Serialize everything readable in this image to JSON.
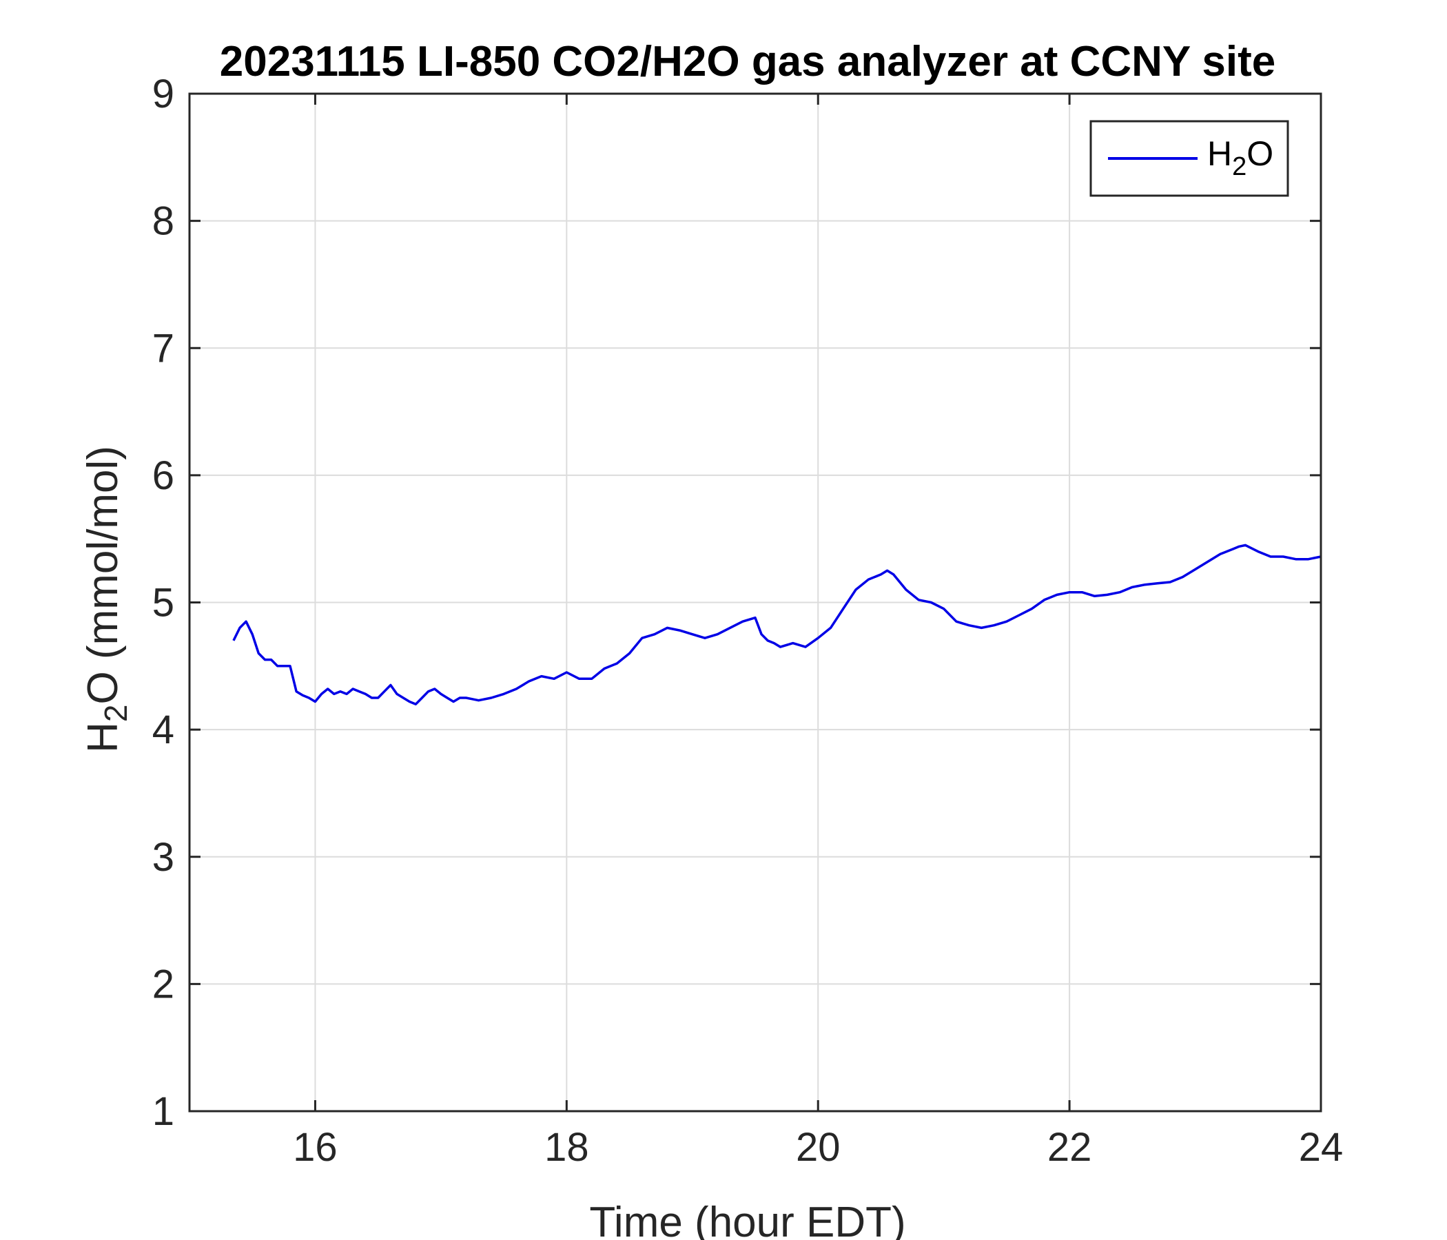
{
  "chart_data": {
    "type": "line",
    "title": "20231115 LI-850 CO2/H2O gas analyzer at CCNY site",
    "xlabel": "Time (hour EDT)",
    "ylabel": {
      "main": "H",
      "sub": "2",
      "rest": "O (mmol/mol)"
    },
    "xlim": [
      15,
      24
    ],
    "ylim": [
      1,
      9
    ],
    "xticks": [
      16,
      18,
      20,
      22,
      24
    ],
    "yticks": [
      1,
      2,
      3,
      4,
      5,
      6,
      7,
      8,
      9
    ],
    "grid": true,
    "legend_position": "top-right",
    "series": [
      {
        "name": {
          "main": "H",
          "sub": "2",
          "rest": "O"
        },
        "color": "#0000e6",
        "x": [
          15.35,
          15.4,
          15.45,
          15.5,
          15.55,
          15.6,
          15.65,
          15.7,
          15.75,
          15.8,
          15.85,
          15.9,
          15.95,
          16.0,
          16.05,
          16.1,
          16.15,
          16.2,
          16.25,
          16.3,
          16.35,
          16.4,
          16.45,
          16.5,
          16.55,
          16.6,
          16.65,
          16.7,
          16.75,
          16.8,
          16.85,
          16.9,
          16.95,
          17.0,
          17.05,
          17.1,
          17.15,
          17.2,
          17.25,
          17.3,
          17.4,
          17.5,
          17.6,
          17.7,
          17.8,
          17.9,
          18.0,
          18.1,
          18.2,
          18.3,
          18.4,
          18.5,
          18.6,
          18.7,
          18.8,
          18.9,
          19.0,
          19.1,
          19.2,
          19.3,
          19.4,
          19.5,
          19.55,
          19.6,
          19.65,
          19.7,
          19.8,
          19.9,
          20.0,
          20.1,
          20.2,
          20.3,
          20.4,
          20.5,
          20.55,
          20.6,
          20.7,
          20.8,
          20.9,
          21.0,
          21.1,
          21.2,
          21.3,
          21.4,
          21.5,
          21.6,
          21.7,
          21.8,
          21.9,
          22.0,
          22.1,
          22.2,
          22.3,
          22.4,
          22.5,
          22.6,
          22.7,
          22.8,
          22.9,
          23.0,
          23.1,
          23.2,
          23.3,
          23.35,
          23.4,
          23.5,
          23.6,
          23.7,
          23.8,
          23.9,
          24.0
        ],
        "y": [
          4.7,
          4.8,
          4.85,
          4.75,
          4.6,
          4.55,
          4.55,
          4.5,
          4.5,
          4.5,
          4.3,
          4.27,
          4.25,
          4.22,
          4.28,
          4.32,
          4.28,
          4.3,
          4.28,
          4.32,
          4.3,
          4.28,
          4.25,
          4.25,
          4.3,
          4.35,
          4.28,
          4.25,
          4.22,
          4.2,
          4.25,
          4.3,
          4.32,
          4.28,
          4.25,
          4.22,
          4.25,
          4.25,
          4.24,
          4.23,
          4.25,
          4.28,
          4.32,
          4.38,
          4.42,
          4.4,
          4.45,
          4.4,
          4.4,
          4.48,
          4.52,
          4.6,
          4.72,
          4.75,
          4.8,
          4.78,
          4.75,
          4.72,
          4.75,
          4.8,
          4.85,
          4.88,
          4.75,
          4.7,
          4.68,
          4.65,
          4.68,
          4.65,
          4.72,
          4.8,
          4.95,
          5.1,
          5.18,
          5.22,
          5.25,
          5.22,
          5.1,
          5.02,
          5.0,
          4.95,
          4.85,
          4.82,
          4.8,
          4.82,
          4.85,
          4.9,
          4.95,
          5.02,
          5.06,
          5.08,
          5.08,
          5.05,
          5.06,
          5.08,
          5.12,
          5.14,
          5.15,
          5.16,
          5.2,
          5.26,
          5.32,
          5.38,
          5.42,
          5.44,
          5.45,
          5.4,
          5.36,
          5.36,
          5.34,
          5.34,
          5.36
        ]
      }
    ]
  }
}
